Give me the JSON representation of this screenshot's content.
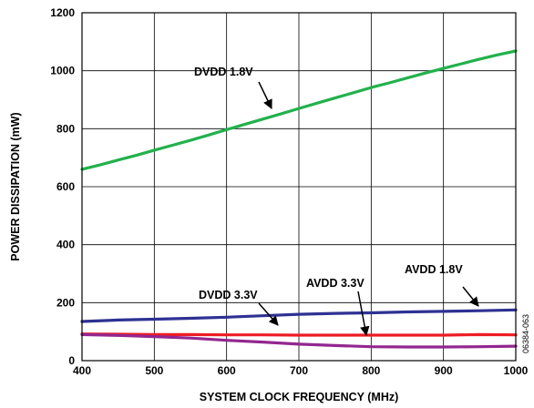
{
  "chart_data": {
    "type": "line",
    "title": "",
    "xlabel": "SYSTEM CLOCK FREQUENCY (MHz)",
    "ylabel": "POWER DISSIPATION (mW)",
    "xlim": [
      400,
      1000
    ],
    "ylim": [
      0,
      1200
    ],
    "xticks": [
      "400",
      "500",
      "600",
      "700",
      "800",
      "900",
      "1000"
    ],
    "yticks": [
      "0",
      "200",
      "400",
      "600",
      "800",
      "1000",
      "1200"
    ],
    "grid": true,
    "figure_id": "06384-063",
    "series": [
      {
        "name": "DVDD 1.8V",
        "color": "#22b14c",
        "x": [
          400,
          425,
          450,
          475,
          500,
          525,
          550,
          575,
          600,
          625,
          650,
          675,
          700,
          725,
          750,
          775,
          800,
          825,
          850,
          875,
          900,
          925,
          950,
          975,
          1000
        ],
        "y": [
          660,
          675,
          692,
          708,
          726,
          743,
          760,
          778,
          797,
          815,
          833,
          851,
          870,
          888,
          906,
          924,
          942,
          958,
          975,
          992,
          1008,
          1024,
          1040,
          1055,
          1068
        ]
      },
      {
        "name": "AVDD 1.8V",
        "color": "#2e3192",
        "x": [
          400,
          450,
          500,
          550,
          600,
          650,
          700,
          750,
          800,
          850,
          900,
          950,
          1000
        ],
        "y": [
          135,
          140,
          143,
          146,
          150,
          155,
          160,
          163,
          165,
          168,
          170,
          172,
          175
        ]
      },
      {
        "name": "AVDD 3.3V",
        "color": "#ed1c24",
        "x": [
          400,
          450,
          500,
          550,
          600,
          650,
          700,
          750,
          800,
          850,
          900,
          950,
          1000
        ],
        "y": [
          92,
          91,
          90,
          90,
          89,
          89,
          88,
          88,
          88,
          88,
          88,
          90,
          89
        ]
      },
      {
        "name": "DVDD 3.3V",
        "color": "#92278f",
        "x": [
          400,
          450,
          500,
          550,
          600,
          650,
          700,
          750,
          800,
          850,
          900,
          950,
          1000
        ],
        "y": [
          90,
          87,
          83,
          78,
          70,
          64,
          57,
          52,
          48,
          47,
          47,
          48,
          50
        ]
      }
    ],
    "annotations": [
      {
        "text": "DVDD 1.8V",
        "series": "DVDD 1.8V"
      },
      {
        "text": "AVDD 1.8V",
        "series": "AVDD 1.8V"
      },
      {
        "text": "AVDD 3.3V",
        "series": "AVDD 3.3V"
      },
      {
        "text": "DVDD 3.3V",
        "series": "DVDD 3.3V"
      }
    ]
  }
}
